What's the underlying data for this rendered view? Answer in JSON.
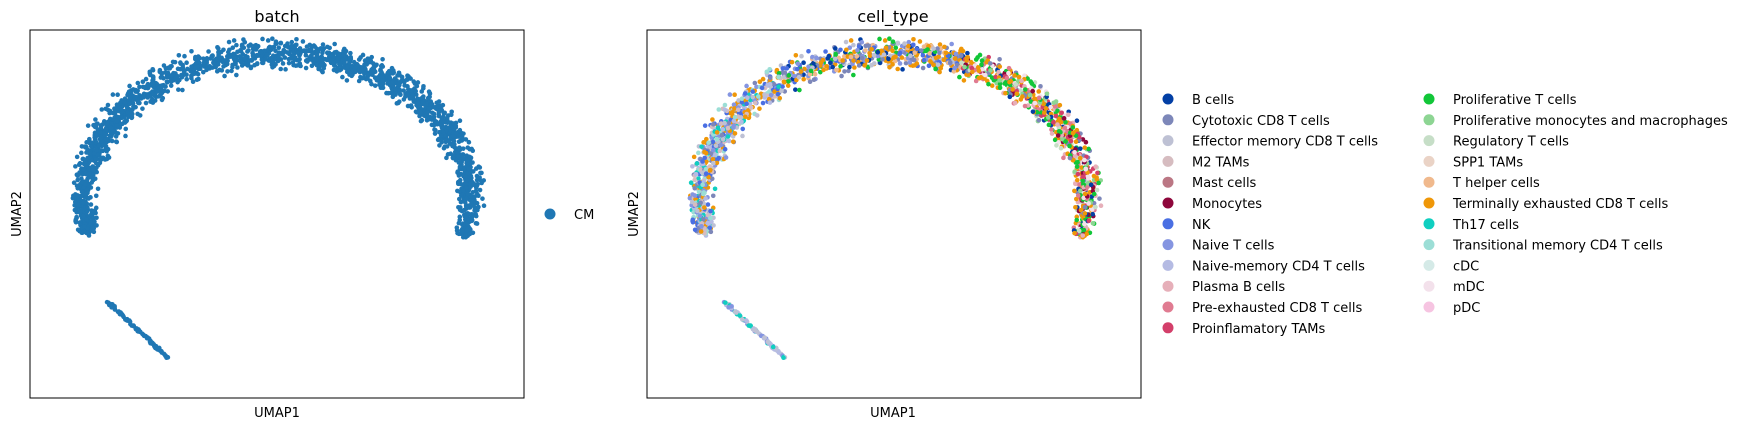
{
  "chart_data": [
    {
      "type": "scatter",
      "title": "batch",
      "xlabel": "UMAP1",
      "ylabel": "UMAP2",
      "xticks": [],
      "yticks": [],
      "legend": {
        "position": "right",
        "entries": [
          {
            "name": "CM",
            "color": "#1f77b4"
          }
        ]
      },
      "series": [
        {
          "name": "CM",
          "color": "#1f77b4"
        }
      ]
    },
    {
      "type": "scatter",
      "title": "cell_type",
      "xlabel": "UMAP1",
      "ylabel": "UMAP2",
      "xticks": [],
      "yticks": [],
      "legend": {
        "position": "right",
        "columns": 2,
        "entries": [
          {
            "name": "B cells",
            "color": "#023fa5"
          },
          {
            "name": "Cytotoxic CD8 T cells",
            "color": "#7d87b9"
          },
          {
            "name": "Effector memory CD8 T cells",
            "color": "#bec1d4"
          },
          {
            "name": "M2 TAMs",
            "color": "#d6bcc0"
          },
          {
            "name": "Mast cells",
            "color": "#bb7784"
          },
          {
            "name": "Monocytes",
            "color": "#8e063b"
          },
          {
            "name": "NK",
            "color": "#4a6fe3"
          },
          {
            "name": "Naive T cells",
            "color": "#8595e1"
          },
          {
            "name": "Naive-memory CD4 T cells",
            "color": "#b5bbe3"
          },
          {
            "name": "Plasma B cells",
            "color": "#e6afb9"
          },
          {
            "name": "Pre-exhausted CD8 T cells",
            "color": "#e07b91"
          },
          {
            "name": "Proinflamatory TAMs",
            "color": "#d33f6a"
          },
          {
            "name": "Proliferative T cells",
            "color": "#11c638"
          },
          {
            "name": "Proliferative monocytes and macrophages",
            "color": "#8dd593"
          },
          {
            "name": "Regulatory T cells",
            "color": "#c6dec7"
          },
          {
            "name": "SPP1 TAMs",
            "color": "#ead3c6"
          },
          {
            "name": "T helper cells",
            "color": "#f0b98d"
          },
          {
            "name": "Terminally exhausted CD8 T cells",
            "color": "#ef9708"
          },
          {
            "name": "Th17 cells",
            "color": "#0fcfc0"
          },
          {
            "name": "Transitional memory CD4 T cells",
            "color": "#9cded6"
          },
          {
            "name": "cDC",
            "color": "#d5eae7"
          },
          {
            "name": "mDC",
            "color": "#f3e1eb"
          },
          {
            "name": "pDC",
            "color": "#f6c4e1"
          }
        ]
      }
    }
  ]
}
